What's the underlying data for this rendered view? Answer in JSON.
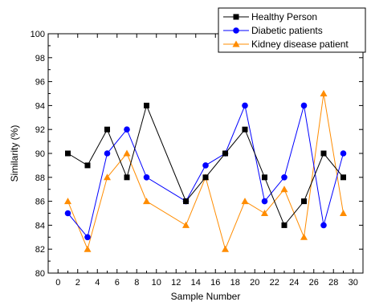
{
  "chart_data": {
    "type": "line",
    "xlabel": "Sample Number",
    "ylabel": "Similarity (%)",
    "xlim": [
      -1,
      31
    ],
    "ylim": [
      80,
      100
    ],
    "x_ticks": [
      0,
      2,
      4,
      6,
      8,
      10,
      12,
      14,
      16,
      18,
      20,
      22,
      24,
      26,
      28,
      30
    ],
    "y_ticks": [
      80,
      82,
      84,
      86,
      88,
      90,
      92,
      94,
      96,
      98,
      100
    ],
    "legend_position": "top-right",
    "grid": false,
    "series": [
      {
        "name": "Healthy Person",
        "color": "#000000",
        "marker": "square",
        "x": [
          1,
          3,
          5,
          7,
          9,
          13,
          15,
          17,
          19,
          21,
          23,
          25,
          27,
          29
        ],
        "values": [
          90,
          89,
          92,
          88,
          94,
          86,
          88,
          90,
          92,
          88,
          84,
          86,
          90,
          88
        ]
      },
      {
        "name": "Diabetic patients",
        "color": "#0000ff",
        "marker": "circle",
        "x": [
          1,
          3,
          5,
          7,
          9,
          13,
          15,
          17,
          19,
          21,
          23,
          25,
          27,
          29
        ],
        "values": [
          85,
          83,
          90,
          92,
          88,
          86,
          89,
          90,
          94,
          86,
          88,
          94,
          84,
          90
        ]
      },
      {
        "name": "Kidney disease patient",
        "color": "#ff8c00",
        "marker": "triangle",
        "x": [
          1,
          3,
          5,
          7,
          9,
          13,
          15,
          17,
          19,
          21,
          23,
          25,
          27,
          29
        ],
        "values": [
          86,
          82,
          88,
          90,
          86,
          84,
          88,
          82,
          86,
          85,
          87,
          83,
          95,
          85
        ]
      }
    ]
  }
}
